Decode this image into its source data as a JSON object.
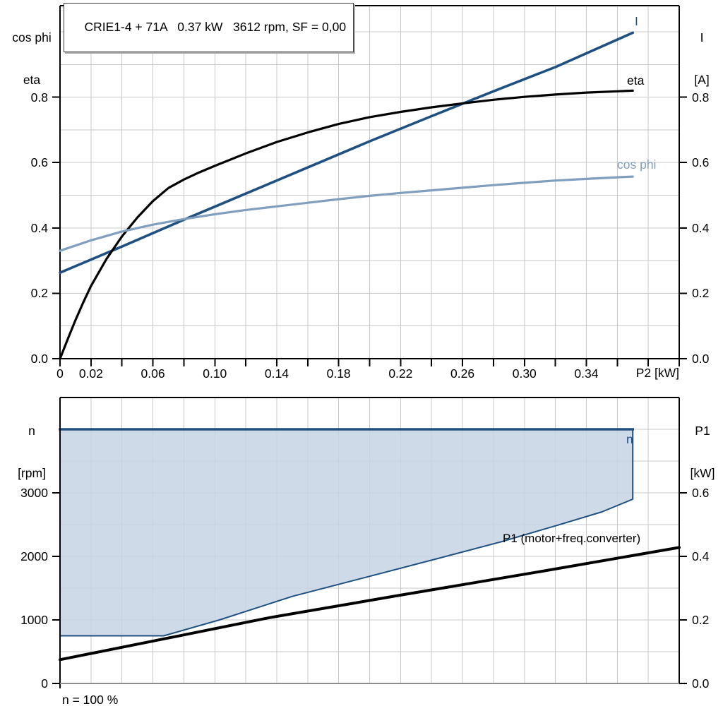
{
  "title": "CRIE1-4 + 71A   0.37 kW   3612 rpm, SF = 0,00",
  "footnote": "n = 100 %",
  "colors": {
    "dark_blue": "#1e5082",
    "light_blue": "#809ebd",
    "area_fill": "rgba(199,212,228,0.85)",
    "black": "#000000",
    "grid": "#c8c8c8",
    "axis_gray": "#8f8f8f"
  },
  "top_chart": {
    "left_axis_title": [
      "cos phi",
      "eta"
    ],
    "right_axis_title": [
      "I",
      "[A]"
    ],
    "x_axis_title": "P2 [kW]",
    "x_tick_labels": [
      {
        "v": 0,
        "t": "0"
      },
      {
        "v": 0.02,
        "t": "0.02"
      },
      {
        "v": 0.06,
        "t": "0.06"
      },
      {
        "v": 0.1,
        "t": "0.10"
      },
      {
        "v": 0.14,
        "t": "0.14"
      },
      {
        "v": 0.18,
        "t": "0.18"
      },
      {
        "v": 0.22,
        "t": "0.22"
      },
      {
        "v": 0.26,
        "t": "0.26"
      },
      {
        "v": 0.3,
        "t": "0.30"
      },
      {
        "v": 0.34,
        "t": "0.34"
      }
    ],
    "y_tick_labels": [
      {
        "v": 0.0,
        "t": "0.0"
      },
      {
        "v": 0.2,
        "t": "0.2"
      },
      {
        "v": 0.4,
        "t": "0.4"
      },
      {
        "v": 0.6,
        "t": "0.6"
      },
      {
        "v": 0.8,
        "t": "0.8"
      }
    ]
  },
  "bottom_chart": {
    "left_axis_title": [
      "n",
      "[rpm]"
    ],
    "right_axis_title": [
      "P1",
      "[kW]"
    ],
    "left_tick_labels": [
      {
        "v": 0,
        "t": "0"
      },
      {
        "v": 1000,
        "t": "1000"
      },
      {
        "v": 2000,
        "t": "2000"
      },
      {
        "v": 3000,
        "t": "3000"
      }
    ],
    "right_tick_labels": [
      {
        "v": 0.0,
        "t": "0.0"
      },
      {
        "v": 0.2,
        "t": "0.2"
      },
      {
        "v": 0.4,
        "t": "0.4"
      },
      {
        "v": 0.6,
        "t": "0.6"
      }
    ]
  },
  "curve_labels": {
    "i": "I",
    "eta": "eta",
    "cosphi": "cos phi",
    "n": "n",
    "p1": "P1 (motor+freq.converter)"
  },
  "chart_data": [
    {
      "type": "line",
      "title": "CRIE1-4 + 71A  0.37 kW  3612 rpm, SF = 0,00",
      "xlabel": "P2 [kW]",
      "ylabel_left": "cos phi / eta",
      "ylabel_right": "I [A]",
      "xlim": [
        0,
        0.4
      ],
      "ylim": [
        0,
        1.08
      ],
      "grid": true,
      "x_grid_step": 0.02,
      "y_grid_step": 0.1,
      "series": [
        {
          "name": "I",
          "color_key": "dark_blue",
          "width": 3.6,
          "points": [
            [
              0,
              0.263
            ],
            [
              0.04,
              0.343
            ],
            [
              0.08,
              0.425
            ],
            [
              0.12,
              0.505
            ],
            [
              0.16,
              0.585
            ],
            [
              0.2,
              0.665
            ],
            [
              0.24,
              0.742
            ],
            [
              0.28,
              0.818
            ],
            [
              0.32,
              0.892
            ],
            [
              0.37,
              0.997
            ]
          ]
        },
        {
          "name": "eta",
          "color_key": "black",
          "width": 3.2,
          "points": [
            [
              0,
              0
            ],
            [
              0.005,
              0.06
            ],
            [
              0.01,
              0.118
            ],
            [
              0.015,
              0.172
            ],
            [
              0.02,
              0.222
            ],
            [
              0.03,
              0.305
            ],
            [
              0.04,
              0.374
            ],
            [
              0.05,
              0.432
            ],
            [
              0.06,
              0.482
            ],
            [
              0.07,
              0.522
            ],
            [
              0.08,
              0.548
            ],
            [
              0.09,
              0.57
            ],
            [
              0.1,
              0.59
            ],
            [
              0.12,
              0.628
            ],
            [
              0.14,
              0.663
            ],
            [
              0.16,
              0.692
            ],
            [
              0.18,
              0.718
            ],
            [
              0.2,
              0.739
            ],
            [
              0.22,
              0.755
            ],
            [
              0.24,
              0.769
            ],
            [
              0.26,
              0.781
            ],
            [
              0.28,
              0.792
            ],
            [
              0.3,
              0.801
            ],
            [
              0.32,
              0.808
            ],
            [
              0.34,
              0.814
            ],
            [
              0.36,
              0.818
            ],
            [
              0.37,
              0.82
            ]
          ]
        },
        {
          "name": "cos phi",
          "color_key": "light_blue",
          "width": 3.2,
          "points": [
            [
              0,
              0.33
            ],
            [
              0.02,
              0.362
            ],
            [
              0.04,
              0.389
            ],
            [
              0.06,
              0.41
            ],
            [
              0.08,
              0.427
            ],
            [
              0.1,
              0.442
            ],
            [
              0.12,
              0.455
            ],
            [
              0.14,
              0.466
            ],
            [
              0.16,
              0.477
            ],
            [
              0.18,
              0.488
            ],
            [
              0.2,
              0.498
            ],
            [
              0.22,
              0.507
            ],
            [
              0.24,
              0.515
            ],
            [
              0.26,
              0.523
            ],
            [
              0.28,
              0.531
            ],
            [
              0.3,
              0.538
            ],
            [
              0.32,
              0.545
            ],
            [
              0.34,
              0.55
            ],
            [
              0.36,
              0.555
            ],
            [
              0.37,
              0.557
            ]
          ]
        }
      ]
    },
    {
      "type": "area+line",
      "xlabel": "",
      "ylabel_left": "n [rpm]",
      "ylabel_right": "P1 [kW]",
      "xlim": [
        0,
        0.4
      ],
      "ylim_left": [
        0,
        4500
      ],
      "ylim_right": [
        0,
        0.9
      ],
      "grid": true,
      "x_grid_step": 0.02,
      "y_grid_step_left": 500,
      "series": [
        {
          "name": "n",
          "type": "area",
          "yscale": "left",
          "color_key": "dark_blue",
          "fill_key": "area_fill",
          "top_edge_width": 3.6,
          "border_width": 2,
          "points": [
            [
              0,
              4000
            ],
            [
              0.37,
              4000
            ],
            [
              0.37,
              2900
            ],
            [
              0.35,
              2700
            ],
            [
              0.32,
              2480
            ],
            [
              0.285,
              2230
            ],
            [
              0.243,
              1960
            ],
            [
              0.199,
              1680
            ],
            [
              0.15,
              1370
            ],
            [
              0.103,
              1000
            ],
            [
              0.067,
              750
            ],
            [
              0,
              750
            ]
          ]
        },
        {
          "name": "P1 (motor+freq.converter)",
          "type": "line",
          "yscale": "right",
          "color_key": "black",
          "width": 4,
          "points": [
            [
              0,
              0.075
            ],
            [
              0.07,
              0.143
            ],
            [
              0.135,
              0.207
            ],
            [
              0.22,
              0.278
            ],
            [
              0.31,
              0.352
            ],
            [
              0.4,
              0.428
            ]
          ]
        }
      ]
    }
  ]
}
